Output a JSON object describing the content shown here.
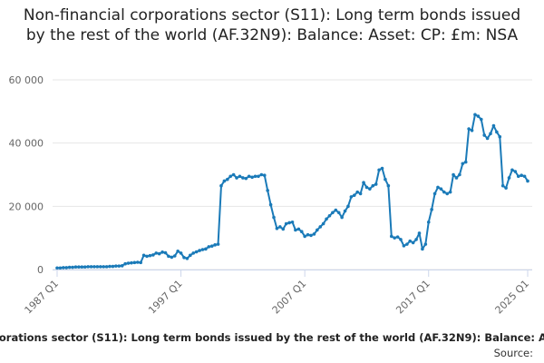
{
  "chart_data": {
    "type": "line",
    "title": "Non-financial corporations sector (S11): Long term bonds issued by the rest of the world (AF.32N9): Balance: Asset: CP: £m: NSA",
    "source": "Source:",
    "categories": [
      "1987 Q1",
      "1987 Q2",
      "1987 Q3",
      "1987 Q4",
      "1988 Q1",
      "1988 Q2",
      "1988 Q3",
      "1988 Q4",
      "1989 Q1",
      "1989 Q2",
      "1989 Q3",
      "1989 Q4",
      "1990 Q1",
      "1990 Q2",
      "1990 Q3",
      "1990 Q4",
      "1991 Q1",
      "1991 Q2",
      "1991 Q3",
      "1991 Q4",
      "1992 Q1",
      "1992 Q2",
      "1992 Q3",
      "1992 Q4",
      "1993 Q1",
      "1993 Q2",
      "1993 Q3",
      "1993 Q4",
      "1994 Q1",
      "1994 Q2",
      "1994 Q3",
      "1994 Q4",
      "1995 Q1",
      "1995 Q2",
      "1995 Q3",
      "1995 Q4",
      "1996 Q1",
      "1996 Q2",
      "1996 Q3",
      "1996 Q4",
      "1997 Q1",
      "1997 Q2",
      "1997 Q3",
      "1997 Q4",
      "1998 Q1",
      "1998 Q2",
      "1998 Q3",
      "1998 Q4",
      "1999 Q1",
      "1999 Q2",
      "1999 Q3",
      "1999 Q4",
      "2000 Q1",
      "2000 Q2",
      "2000 Q3",
      "2000 Q4",
      "2001 Q1",
      "2001 Q2",
      "2001 Q3",
      "2001 Q4",
      "2002 Q1",
      "2002 Q2",
      "2002 Q3",
      "2002 Q4",
      "2003 Q1",
      "2003 Q2",
      "2003 Q3",
      "2003 Q4",
      "2004 Q1",
      "2004 Q2",
      "2004 Q3",
      "2004 Q4",
      "2005 Q1",
      "2005 Q2",
      "2005 Q3",
      "2005 Q4",
      "2006 Q1",
      "2006 Q2",
      "2006 Q3",
      "2006 Q4",
      "2007 Q1",
      "2007 Q2",
      "2007 Q3",
      "2007 Q4",
      "2008 Q1",
      "2008 Q2",
      "2008 Q3",
      "2008 Q4",
      "2009 Q1",
      "2009 Q2",
      "2009 Q3",
      "2009 Q4",
      "2010 Q1",
      "2010 Q2",
      "2010 Q3",
      "2010 Q4",
      "2011 Q1",
      "2011 Q2",
      "2011 Q3",
      "2011 Q4",
      "2012 Q1",
      "2012 Q2",
      "2012 Q3",
      "2012 Q4",
      "2013 Q1",
      "2013 Q2",
      "2013 Q3",
      "2013 Q4",
      "2014 Q1",
      "2014 Q2",
      "2014 Q3",
      "2014 Q4",
      "2015 Q1",
      "2015 Q2",
      "2015 Q3",
      "2015 Q4",
      "2016 Q1",
      "2016 Q2",
      "2016 Q3",
      "2016 Q4",
      "2017 Q1",
      "2017 Q2",
      "2017 Q3",
      "2017 Q4",
      "2018 Q1",
      "2018 Q2",
      "2018 Q3",
      "2018 Q4",
      "2019 Q1",
      "2019 Q2",
      "2019 Q3",
      "2019 Q4",
      "2020 Q1",
      "2020 Q2",
      "2020 Q3",
      "2020 Q4",
      "2021 Q1",
      "2021 Q2",
      "2021 Q3",
      "2021 Q4",
      "2022 Q1",
      "2022 Q2",
      "2022 Q3",
      "2022 Q4",
      "2023 Q1",
      "2023 Q2",
      "2023 Q3",
      "2023 Q4",
      "2024 Q1",
      "2024 Q2",
      "2024 Q3",
      "2024 Q4",
      "2025 Q1"
    ],
    "xticks": [
      "1987 Q1",
      "1997 Q1",
      "2007 Q1",
      "2017 Q1",
      "2025 Q1"
    ],
    "series": [
      {
        "name": "Non-financial corporations sector (S11): Long term bonds issued by the rest of the world (AF.32N9): Balance: Asset: CP: £m: NSA",
        "color": "#1a7ab8",
        "values": [
          500,
          500,
          600,
          600,
          700,
          700,
          800,
          800,
          800,
          800,
          900,
          900,
          900,
          900,
          900,
          900,
          900,
          1000,
          1000,
          1100,
          1100,
          1200,
          1800,
          2000,
          2100,
          2200,
          2300,
          2200,
          4500,
          4200,
          4400,
          4600,
          5200,
          5000,
          5500,
          5300,
          4200,
          3900,
          4300,
          5800,
          5200,
          3800,
          3500,
          4500,
          5200,
          5600,
          6000,
          6300,
          6500,
          7200,
          7400,
          7800,
          8000,
          26500,
          28000,
          28500,
          29500,
          30000,
          29000,
          29500,
          29000,
          28800,
          29500,
          29200,
          29500,
          29500,
          30000,
          29800,
          25000,
          20500,
          16500,
          13000,
          13500,
          12800,
          14500,
          14800,
          15000,
          12500,
          12800,
          12000,
          10500,
          11000,
          10800,
          11200,
          12500,
          13500,
          14500,
          16000,
          17000,
          18000,
          18800,
          18000,
          16500,
          18500,
          20000,
          23000,
          23500,
          24500,
          24000,
          27500,
          26000,
          25500,
          26500,
          27000,
          31500,
          32000,
          28500,
          26500,
          10500,
          10000,
          10300,
          9500,
          7500,
          8000,
          9000,
          8500,
          9500,
          11500,
          6500,
          8000,
          15000,
          19000,
          24000,
          26000,
          25500,
          24500,
          24000,
          24500,
          30000,
          29000,
          30000,
          33500,
          34000,
          44500,
          44000,
          49000,
          48500,
          47500,
          42500,
          41500,
          43000,
          45500,
          43500,
          42000,
          26500,
          25800,
          29000,
          31500,
          31000,
          29500,
          29800,
          29500,
          28000
        ]
      }
    ],
    "ylim": [
      0,
      60000
    ],
    "yticks": [
      {
        "value": 0,
        "label": "0"
      },
      {
        "value": 20000,
        "label": "20 000"
      },
      {
        "value": 40000,
        "label": "40 000"
      },
      {
        "value": 60000,
        "label": "60 000"
      }
    ],
    "grid": true
  }
}
